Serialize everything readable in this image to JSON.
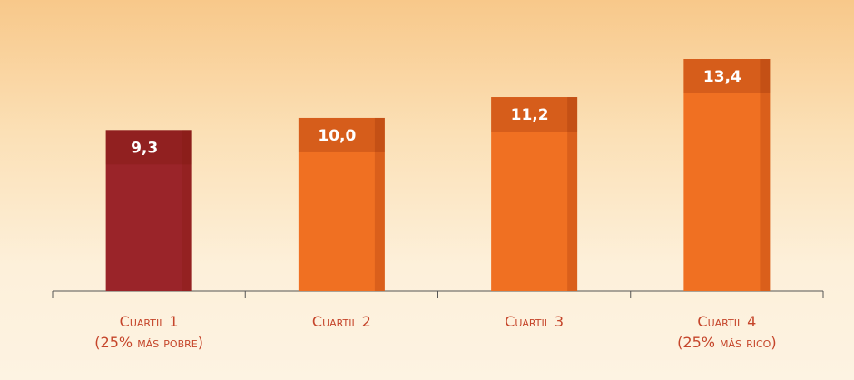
{
  "chart_data": {
    "type": "bar",
    "categories": [
      "Cuartil 1\n(25% más pobre)",
      "Cuartil 2",
      "Cuartil 3",
      "Cuartil 4\n(25% más rico)"
    ],
    "values": [
      9.3,
      10.0,
      11.2,
      13.4
    ],
    "value_labels": [
      "9,3",
      "10,0",
      "11,2",
      "13,4"
    ],
    "colors": [
      "#9a2429",
      "#f07022",
      "#f07022",
      "#f07022"
    ]
  }
}
